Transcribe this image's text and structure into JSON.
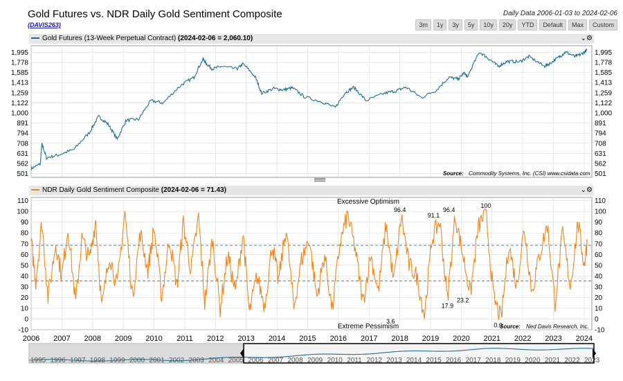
{
  "header": {
    "title": "Gold Futures vs. NDR Daily Gold Sentiment Composite",
    "code": "(DAVIS263)",
    "date_range": "Daily Data 2006-01-03 to 2024-02-06",
    "buttons": [
      "3m",
      "1y",
      "3y",
      "5y",
      "10y",
      "20y",
      "YTD",
      "Default",
      "Max",
      "Custom"
    ]
  },
  "colors": {
    "gold": "#1f6e94",
    "sentiment": "#f0861e",
    "band": "#4a7fa6",
    "grid": "#d8d8d8"
  },
  "top_panel": {
    "legend_name": "Gold Futures (13-Week Perpetual Contract)",
    "legend_value": "(2024-02-06 = 2,060.10)",
    "source_label": "Source:",
    "source_text": "Commodity Systems, Inc. (CSI) www.csidata.com",
    "controls": "⌄⚙"
  },
  "bottom_panel": {
    "legend_name": "NDR Daily Gold Sentiment Composite",
    "legend_value": "(2024-02-06 = 71.43)",
    "top_note": "Excessive Optimism",
    "bottom_note": "Extreme Pessimism",
    "source_label": "Source:",
    "source_text": "Ned Davis Research, Inc.",
    "controls": "⌄⚙"
  },
  "chart_data": [
    {
      "type": "line",
      "title": "Gold Futures (13-Week Perpetual Contract)",
      "y_scale": "log",
      "ylim": [
        480,
        2150
      ],
      "y_ticks": [
        501,
        562,
        631,
        708,
        794,
        891,
        1000,
        1122,
        1259,
        1413,
        1585,
        1778,
        1995
      ],
      "y_tick_labels": [
        "501",
        "562",
        "631",
        "708",
        "794",
        "891",
        "1,000",
        "1,122",
        "1,259",
        "1,413",
        "1,585",
        "1,778",
        "1,995"
      ],
      "x": [
        2006.0,
        2006.3,
        2006.35,
        2006.5,
        2006.9,
        2007.4,
        2007.9,
        2008.2,
        2008.5,
        2008.8,
        2009.1,
        2009.5,
        2009.9,
        2010.3,
        2010.9,
        2011.3,
        2011.6,
        2011.7,
        2011.9,
        2012.2,
        2012.7,
        2012.9,
        2013.3,
        2013.5,
        2013.9,
        2014.2,
        2014.5,
        2014.9,
        2015.5,
        2015.9,
        2016.2,
        2016.5,
        2016.9,
        2017.5,
        2017.9,
        2018.2,
        2018.7,
        2019.2,
        2019.6,
        2019.9,
        2020.1,
        2020.2,
        2020.6,
        2020.9,
        2021.2,
        2021.5,
        2021.9,
        2022.2,
        2022.7,
        2022.9,
        2023.2,
        2023.4,
        2023.7,
        2023.9,
        2024.1
      ],
      "values": [
        530,
        560,
        700,
        600,
        620,
        660,
        800,
        960,
        880,
        740,
        920,
        930,
        1150,
        1120,
        1380,
        1500,
        1850,
        1750,
        1650,
        1700,
        1650,
        1750,
        1500,
        1250,
        1320,
        1300,
        1330,
        1200,
        1130,
        1060,
        1250,
        1340,
        1150,
        1250,
        1290,
        1340,
        1190,
        1300,
        1500,
        1470,
        1580,
        1500,
        2000,
        1850,
        1700,
        1800,
        1790,
        1900,
        1700,
        1760,
        1900,
        2000,
        1900,
        1950,
        2050
      ],
      "x_ticks": [
        2006,
        2007,
        2008,
        2009,
        2010,
        2011,
        2012,
        2013,
        2014,
        2015,
        2016,
        2017,
        2018,
        2019,
        2020,
        2021,
        2022,
        2023,
        2024
      ]
    },
    {
      "type": "line",
      "title": "NDR Daily Gold Sentiment Composite",
      "ylim": [
        -10,
        113
      ],
      "y_ticks": [
        -10,
        0,
        10,
        20,
        30,
        40,
        50,
        60,
        70,
        80,
        90,
        100,
        110
      ],
      "y_tick_labels": [
        "-10",
        "0",
        "10",
        "20",
        "30",
        "40",
        "50",
        "60",
        "70",
        "80",
        "90",
        "100",
        "110"
      ],
      "reference_lines": [
        68.5,
        35.3
      ],
      "x": [
        2006.0,
        2006.15,
        2006.35,
        2006.55,
        2006.8,
        2007.0,
        2007.2,
        2007.45,
        2007.65,
        2007.9,
        2008.1,
        2008.3,
        2008.55,
        2008.8,
        2009.05,
        2009.3,
        2009.55,
        2009.8,
        2010.0,
        2010.25,
        2010.5,
        2010.75,
        2010.95,
        2011.2,
        2011.45,
        2011.65,
        2011.9,
        2012.15,
        2012.4,
        2012.65,
        2012.9,
        2013.1,
        2013.35,
        2013.6,
        2013.85,
        2014.05,
        2014.3,
        2014.55,
        2014.8,
        2015.05,
        2015.3,
        2015.55,
        2015.8,
        2016.05,
        2016.3,
        2016.55,
        2016.8,
        2017.05,
        2017.3,
        2017.55,
        2017.8,
        2018.05,
        2018.3,
        2018.55,
        2018.8,
        2019.05,
        2019.3,
        2019.55,
        2019.8,
        2020.05,
        2020.3,
        2020.55,
        2020.8,
        2021.05,
        2021.3,
        2021.55,
        2021.8,
        2022.05,
        2022.3,
        2022.55,
        2022.8,
        2023.05,
        2023.3,
        2023.55,
        2023.8,
        2024.0,
        2024.1
      ],
      "values": [
        72,
        35,
        90,
        20,
        70,
        40,
        85,
        15,
        75,
        55,
        92,
        10,
        60,
        30,
        100,
        20,
        80,
        45,
        85,
        20,
        75,
        30,
        90,
        45,
        95,
        15,
        75,
        10,
        60,
        25,
        80,
        5,
        40,
        12,
        70,
        35,
        85,
        10,
        55,
        75,
        20,
        60,
        8,
        70,
        97,
        65,
        15,
        60,
        25,
        88,
        35,
        96,
        50,
        40,
        3.6,
        75,
        91.1,
        17.9,
        96.4,
        60,
        23.2,
        85,
        100,
        20,
        0,
        70,
        30,
        85,
        25,
        60,
        88,
        15,
        80,
        30,
        90,
        50,
        71.43
      ],
      "annotations": [
        {
          "x": 2018.0,
          "y": 96.4,
          "label": "96.4"
        },
        {
          "x": 2019.1,
          "y": 91.1,
          "label": "91.1"
        },
        {
          "x": 2019.6,
          "y": 96.4,
          "label": "96.4"
        },
        {
          "x": 2020.8,
          "y": 100,
          "label": "100"
        },
        {
          "x": 2017.7,
          "y": 3.6,
          "label": "3.6"
        },
        {
          "x": 2019.55,
          "y": 17.9,
          "label": "17.9"
        },
        {
          "x": 2020.05,
          "y": 23.2,
          "label": "23.2"
        },
        {
          "x": 2021.2,
          "y": 0.0,
          "label": "0.0"
        }
      ],
      "x_ticks": [
        2006,
        2007,
        2008,
        2009,
        2010,
        2011,
        2012,
        2013,
        2014,
        2015,
        2016,
        2017,
        2018,
        2019,
        2020,
        2021,
        2022,
        2023,
        2024
      ]
    }
  ],
  "navigator": {
    "years": [
      "1995",
      "1996",
      "1997",
      "1998",
      "1999",
      "2000",
      "2001",
      "2002",
      "2003",
      "2004",
      "2005",
      "2006",
      "2007",
      "2008",
      "2009",
      "2010",
      "2011",
      "2012",
      "2013",
      "2014",
      "2015",
      "2016",
      "2017",
      "2018",
      "2019",
      "2020",
      "2021",
      "2022",
      "2023"
    ]
  }
}
